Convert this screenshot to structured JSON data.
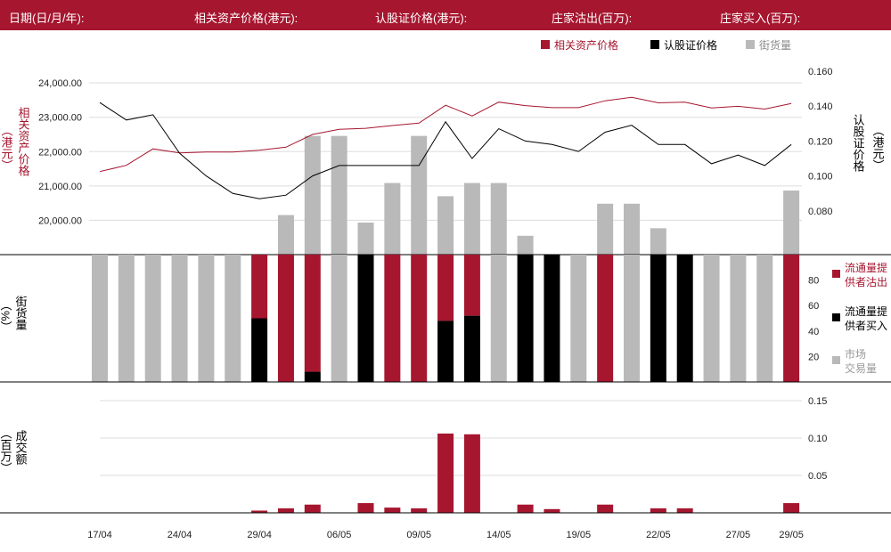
{
  "header": {
    "date_label": "日期(日/月/年):",
    "asset_price_label": "相关资产价格(港元):",
    "warrant_price_label": "认股证价格(港元):",
    "mm_sell_label": "庄家沽出(百万):",
    "mm_buy_label": "庄家买入(百万):"
  },
  "legend_top": {
    "asset": "相关资产价格",
    "warrant": "认股证价格",
    "outstanding": "街货量"
  },
  "legend_mid": {
    "sell_line1": "流通量提",
    "sell_line2": "供者沽出",
    "buy_line1": "流通量提",
    "buy_line2": "供者买入",
    "market_line1": "市场",
    "market_line2": "交易量"
  },
  "labels": {
    "left_top_text": "相关资产价格",
    "left_top_unit": "（港元）",
    "right_top_text": "认股证价格",
    "right_top_unit": "（港元）",
    "mid_left_text": "街货量",
    "mid_left_unit": "（%）",
    "bottom_left_text": "成交额",
    "bottom_left_unit": "（百万）"
  },
  "colors": {
    "brand": "#a6162f",
    "black": "#000000",
    "grey": "#b9b9b9",
    "grid": "#dddddd"
  },
  "chart_data": {
    "type": "line",
    "x_tick_labels": [
      "17/04",
      "24/04",
      "29/04",
      "06/05",
      "09/05",
      "14/05",
      "19/05",
      "22/05",
      "27/05",
      "29/05"
    ],
    "x_tick_index": [
      0,
      3,
      6,
      9,
      12,
      15,
      18,
      21,
      24,
      26
    ],
    "asset_price": {
      "axis": "left",
      "ylim": [
        19000,
        24600
      ],
      "ticks": [
        "24,000.00",
        "23,000.00",
        "22,000.00",
        "21,000.00",
        "20,000.00"
      ],
      "tick_values": [
        24000,
        23000,
        22000,
        21000,
        20000
      ],
      "values": [
        21420,
        21600,
        22080,
        21960,
        21990,
        21990,
        22040,
        22130,
        22500,
        22650,
        22680,
        22760,
        22830,
        23350,
        23040,
        23440,
        23340,
        23280,
        23280,
        23480,
        23580,
        23420,
        23440,
        23270,
        23320,
        23240,
        23400
      ]
    },
    "warrant_price": {
      "axis": "right",
      "ylim": [
        0.055,
        0.165
      ],
      "ticks": [
        "0.160",
        "0.140",
        "0.120",
        "0.100",
        "0.080"
      ],
      "tick_values": [
        0.16,
        0.14,
        0.12,
        0.1,
        0.08
      ],
      "values": [
        0.142,
        0.132,
        0.135,
        0.113,
        0.1,
        0.09,
        0.087,
        0.089,
        0.1,
        0.106,
        0.106,
        0.106,
        0.106,
        0.131,
        0.11,
        0.127,
        0.12,
        0.118,
        0.114,
        0.125,
        0.129,
        0.118,
        0.118,
        0.107,
        0.112,
        0.106,
        0.118
      ]
    },
    "outstanding_pct": [
      null,
      null,
      null,
      null,
      null,
      null,
      null,
      21,
      63,
      63,
      17,
      38,
      63,
      31,
      38,
      38,
      10,
      null,
      null,
      27,
      27,
      14,
      null,
      null,
      null,
      null,
      34
    ],
    "market_share": {
      "ylim": [
        0,
        100
      ],
      "ticks": [
        80,
        60,
        40,
        20
      ],
      "categories": [
        "market",
        "market",
        "market",
        "market",
        "market",
        "market",
        "sell",
        "sell",
        "sell",
        "market",
        "buy",
        "sell",
        "sell",
        "sell",
        "sell",
        "market",
        "buy",
        "buy",
        "market",
        "sell",
        "market",
        "buy",
        "buy",
        "market",
        "market",
        "market",
        "sell"
      ],
      "sell_pct": [
        0,
        0,
        0,
        0,
        0,
        0,
        50,
        100,
        92,
        0,
        0,
        100,
        100,
        52,
        48,
        0,
        0,
        0,
        0,
        100,
        0,
        0,
        0,
        0,
        0,
        0,
        100
      ],
      "buy_pct": [
        0,
        0,
        0,
        0,
        0,
        0,
        50,
        0,
        8,
        0,
        100,
        0,
        0,
        48,
        52,
        0,
        100,
        100,
        0,
        0,
        0,
        100,
        100,
        0,
        0,
        0,
        0
      ]
    },
    "turnover_mln": {
      "ylim": [
        0,
        0.175
      ],
      "ticks": [
        "0.15",
        "0.10",
        "0.05"
      ],
      "tick_values": [
        0.15,
        0.1,
        0.05
      ],
      "values": [
        0,
        0,
        0,
        0,
        0,
        0,
        0.003,
        0.006,
        0.011,
        0,
        0.013,
        0.007,
        0.006,
        0.106,
        0.105,
        0,
        0.011,
        0.005,
        0,
        0.011,
        0,
        0.006,
        0.006,
        0,
        0,
        0,
        0.013
      ]
    }
  }
}
